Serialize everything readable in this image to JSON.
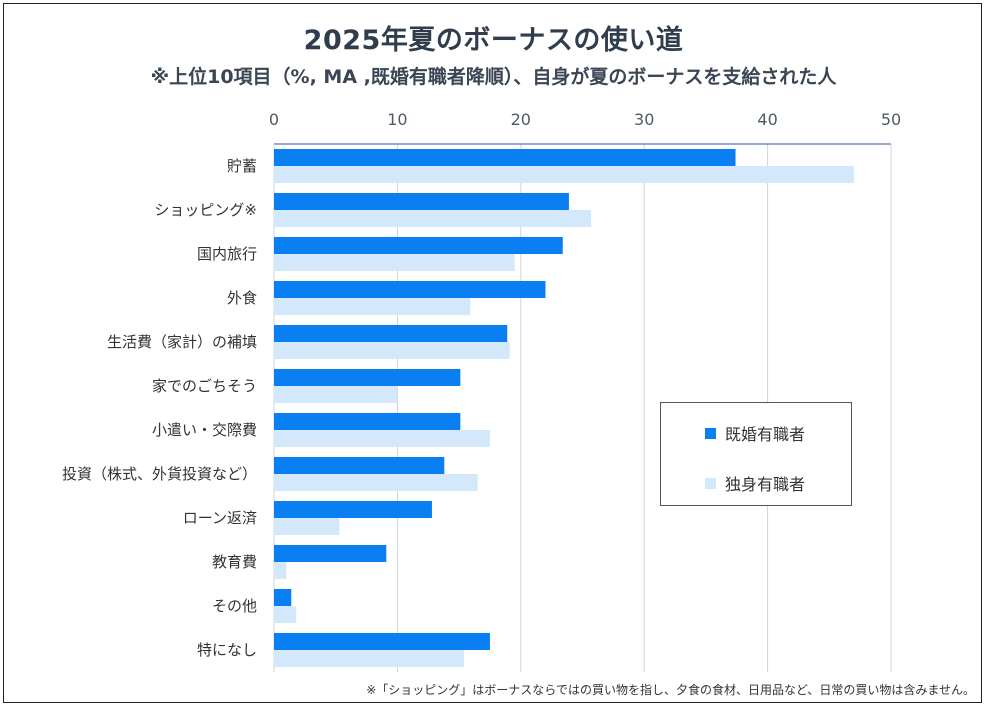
{
  "colors": {
    "married": "#0a7ff2",
    "single": "#d3e8fb",
    "grid": "#cfd5dc",
    "axis": "#2f5597"
  },
  "chart_data": {
    "type": "bar",
    "orientation": "horizontal",
    "title": "2025年夏のボーナスの使い道",
    "subtitle": "※上位10項目（%, MA ,既婚有職者降順）、自身が夏のボーナスを支給された人",
    "xlim": [
      0,
      50
    ],
    "xticks": [
      "0",
      "10",
      "20",
      "30",
      "40",
      "50"
    ],
    "xtick_values": [
      0,
      10,
      20,
      30,
      40,
      50
    ],
    "grid": true,
    "legend_position": "right-bottom",
    "categories": [
      "貯蓄",
      "ショッピング※",
      "国内旅行",
      "外食",
      "生活費（家計）の補填",
      "家でのごちそう",
      "小遣い・交際費",
      "投資（株式、外貨投資など）",
      "ローン返済",
      "教育費",
      "その他",
      "特になし"
    ],
    "series": [
      {
        "name": "既婚有職者",
        "color": "#0a7ff2",
        "values": [
          37.4,
          23.9,
          23.4,
          22.0,
          18.9,
          15.1,
          15.1,
          13.8,
          12.8,
          9.1,
          1.4,
          17.5
        ]
      },
      {
        "name": "独身有職者",
        "color": "#d3e8fb",
        "values": [
          47.0,
          25.7,
          19.5,
          15.9,
          19.1,
          10.0,
          17.5,
          16.5,
          5.3,
          1.0,
          1.8,
          15.4
        ]
      }
    ],
    "footnote": "※「ショッピング」はボーナスならではの買い物を指し、夕食の食材、日用品など、日常の買い物は含みません。"
  }
}
